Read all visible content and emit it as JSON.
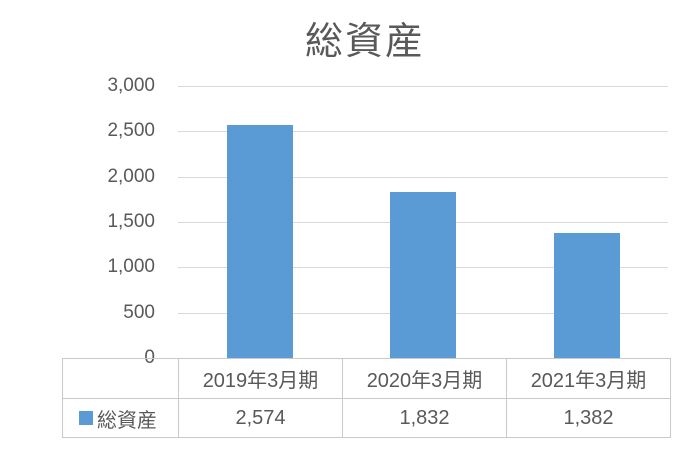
{
  "chart": {
    "title": "総資産"
  },
  "y_axis": {
    "tick_labels": [
      "3,000",
      "2,500",
      "2,000",
      "1,500",
      "1,000",
      "500",
      "0"
    ]
  },
  "chart_data": {
    "type": "bar",
    "title": "総資産",
    "categories": [
      "2019年3月期",
      "2020年3月期",
      "2021年3月期"
    ],
    "series": [
      {
        "name": "総資産",
        "values": [
          2574,
          1832,
          1382
        ]
      }
    ],
    "xlabel": "",
    "ylabel": "",
    "ylim": [
      0,
      3000
    ],
    "ytick_interval": 500,
    "grid": true,
    "legend_position": "bottom-data-table",
    "bar_color": "#5B9BD5"
  },
  "data_table": {
    "legend_label": "総資産",
    "column_headers": [
      "2019年3月期",
      "2020年3月期",
      "2021年3月期"
    ],
    "row_values": [
      "2,574",
      "1,832",
      "1,382"
    ]
  },
  "colors": {
    "bar": "#5B9BD5",
    "text": "#595959",
    "gridline": "#D9D9D9",
    "table_border": "#C9C9C9"
  }
}
